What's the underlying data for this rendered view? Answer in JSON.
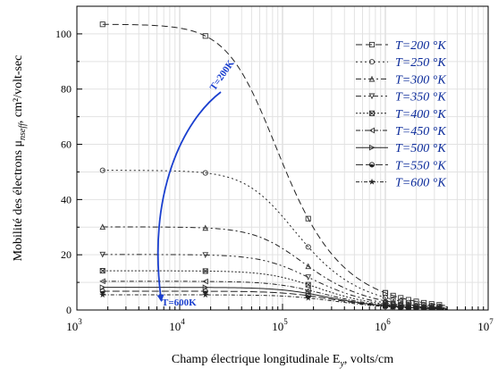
{
  "chart_data": {
    "type": "line",
    "title": "",
    "xlabel": "Champ électrique longitudinale E",
    "xlabel_sub": "y",
    "xlabel_unit": ", volts/cm",
    "ylabel_prefix": "Mobilité des électrons μ",
    "ylabel_sub": "nseff",
    "ylabel_suffix": ", cm²/volt-sec",
    "x_scale": "log",
    "xlim": [
      1000,
      10000000
    ],
    "ylim": [
      0,
      110
    ],
    "grid": true,
    "legend_position": "top-right",
    "x_ticks": [
      {
        "value": 1000,
        "base": "10",
        "exp": "3"
      },
      {
        "value": 10000,
        "base": "10",
        "exp": "4"
      },
      {
        "value": 100000,
        "base": "10",
        "exp": "5"
      },
      {
        "value": 1000000,
        "base": "10",
        "exp": "6"
      },
      {
        "value": 10000000,
        "base": "10",
        "exp": "7"
      }
    ],
    "y_ticks": [
      0,
      20,
      40,
      60,
      80,
      100
    ],
    "marker_x": [
      1778,
      17780,
      177800,
      1000000
    ],
    "series": [
      {
        "name": "T=200 °K",
        "label": "T=200 °K",
        "marker": "square",
        "dash": "7,4",
        "mu0": 103.5,
        "ec": 60000
      },
      {
        "name": "T=250 °K",
        "label": "T=250 °K",
        "marker": "circle",
        "dash": "2,3",
        "mu0": 50.6,
        "ec": 90000
      },
      {
        "name": "T=300 °K",
        "label": "T=300 °K",
        "marker": "triangle",
        "dash": "6,3,2,3",
        "mu0": 30.1,
        "ec": 110000
      },
      {
        "name": "T=350 °K",
        "label": "T=350 °K",
        "marker": "triangle-down",
        "dash": "6,3,2,3,2,3",
        "mu0": 20.1,
        "ec": 130000
      },
      {
        "name": "T=400 °K",
        "label": "T=400 °K",
        "marker": "square-x",
        "dash": "2,2",
        "mu0": 14.2,
        "ec": 150000
      },
      {
        "name": "T=450 °K",
        "label": "T=450 °K",
        "marker": "triangle-left",
        "dash": "5,2,1,2",
        "mu0": 10.4,
        "ec": 170000
      },
      {
        "name": "T=500 °K",
        "label": "T=500 °K",
        "marker": "triangle-right",
        "dash": "",
        "mu0": 8.2,
        "ec": 190000
      },
      {
        "name": "T=550 °K",
        "label": "T=550 °K",
        "marker": "half-circle",
        "dash": "8,3",
        "mu0": 6.8,
        "ec": 210000
      },
      {
        "name": "T=600 °K",
        "label": "T=600 °K",
        "marker": "star",
        "dash": "4,2,1,2",
        "mu0": 5.5,
        "ec": 230000
      }
    ],
    "annotations": {
      "arrow_start_label": "T=200K",
      "arrow_end_label": "T=600K",
      "arrow_color": "#1a3fcf"
    }
  }
}
